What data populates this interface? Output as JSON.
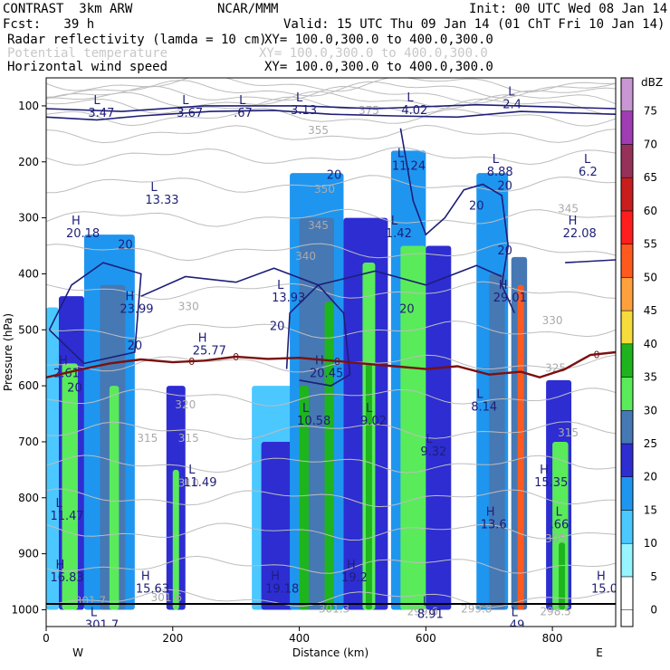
{
  "header": {
    "model": "CONTRAST  3km ARW",
    "org": "NCAR/MMM",
    "init": "Init: 00 UTC Wed 08 Jan 14",
    "fcst": "Fcst:   39 h",
    "valid": "Valid: 15 UTC Thu 09 Jan 14 (01 ChT Fri 10 Jan 14)",
    "fields": [
      {
        "name": "Radar reflectivity (lamda = 10 cm)",
        "xy": "XY= 100.0,300.0 to 400.0,300.0",
        "color": "#000000"
      },
      {
        "name": "Potential temperature",
        "xy": "XY= 100.0,300.0 to 400.0,300.0",
        "color": "#c8c8c8"
      },
      {
        "name": "Horizontal wind speed",
        "xy": "XY= 100.0,300.0 to 400.0,300.0",
        "color": "#000000"
      }
    ]
  },
  "chart_data": {
    "type": "cross-section",
    "xlabel": "Distance (km)",
    "ylabel": "Pressure (hPa)",
    "xlim": [
      0,
      900
    ],
    "ylim": [
      1030,
      50
    ],
    "xticks": [
      "0",
      "200",
      "400",
      "600",
      "800"
    ],
    "xtick_values": [
      0,
      200,
      400,
      600,
      800
    ],
    "yticks": [
      "100",
      "200",
      "300",
      "400",
      "500",
      "600",
      "700",
      "800",
      "900",
      "1000"
    ],
    "ytick_values": [
      100,
      200,
      300,
      400,
      500,
      600,
      700,
      800,
      900,
      1000
    ],
    "direction_labels": {
      "west": "W",
      "east": "E"
    },
    "colorbar": {
      "unit": "dBZ",
      "levels": [
        "0",
        "5",
        "10",
        "15",
        "20",
        "25",
        "30",
        "35",
        "40",
        "45",
        "50",
        "55",
        "60",
        "65",
        "70",
        "75"
      ],
      "colors": [
        "#ffffff",
        "#96f5ff",
        "#4bc8ff",
        "#1e96f0",
        "#2d2dd2",
        "#4678b4",
        "#5aeb5a",
        "#1eb41e",
        "#f5dc3c",
        "#ffa03c",
        "#ff5a1e",
        "#ff1e1e",
        "#c81e1e",
        "#96325a",
        "#a03cb4",
        "#c896d2"
      ]
    },
    "reflectivity_columns": [
      {
        "x0": 0,
        "x1": 20,
        "ptop": 460,
        "pbot": 1000,
        "dbz": 10
      },
      {
        "x0": 20,
        "x1": 60,
        "ptop": 440,
        "pbot": 1000,
        "dbz": 20
      },
      {
        "x0": 25,
        "x1": 50,
        "ptop": 560,
        "pbot": 1000,
        "dbz": 30
      },
      {
        "x0": 60,
        "x1": 140,
        "ptop": 330,
        "pbot": 1000,
        "dbz": 15
      },
      {
        "x0": 85,
        "x1": 125,
        "ptop": 420,
        "pbot": 1000,
        "dbz": 25
      },
      {
        "x0": 100,
        "x1": 115,
        "ptop": 600,
        "pbot": 1000,
        "dbz": 30
      },
      {
        "x0": 190,
        "x1": 220,
        "ptop": 600,
        "pbot": 1000,
        "dbz": 20
      },
      {
        "x0": 200,
        "x1": 210,
        "ptop": 750,
        "pbot": 1000,
        "dbz": 30
      },
      {
        "x0": 325,
        "x1": 390,
        "ptop": 600,
        "pbot": 1000,
        "dbz": 10
      },
      {
        "x0": 340,
        "x1": 395,
        "ptop": 700,
        "pbot": 1000,
        "dbz": 20
      },
      {
        "x0": 385,
        "x1": 470,
        "ptop": 220,
        "pbot": 1000,
        "dbz": 15
      },
      {
        "x0": 400,
        "x1": 455,
        "ptop": 300,
        "pbot": 1000,
        "dbz": 25
      },
      {
        "x0": 400,
        "x1": 415,
        "ptop": 600,
        "pbot": 1000,
        "dbz": 35
      },
      {
        "x0": 440,
        "x1": 455,
        "ptop": 450,
        "pbot": 1000,
        "dbz": 35
      },
      {
        "x0": 470,
        "x1": 540,
        "ptop": 300,
        "pbot": 1000,
        "dbz": 20
      },
      {
        "x0": 500,
        "x1": 520,
        "ptop": 380,
        "pbot": 1000,
        "dbz": 30
      },
      {
        "x0": 505,
        "x1": 515,
        "ptop": 560,
        "pbot": 1000,
        "dbz": 35
      },
      {
        "x0": 545,
        "x1": 600,
        "ptop": 180,
        "pbot": 1000,
        "dbz": 15
      },
      {
        "x0": 560,
        "x1": 600,
        "ptop": 350,
        "pbot": 1000,
        "dbz": 30
      },
      {
        "x0": 600,
        "x1": 640,
        "ptop": 350,
        "pbot": 1000,
        "dbz": 20
      },
      {
        "x0": 680,
        "x1": 730,
        "ptop": 220,
        "pbot": 1000,
        "dbz": 15
      },
      {
        "x0": 700,
        "x1": 725,
        "ptop": 400,
        "pbot": 1000,
        "dbz": 25
      },
      {
        "x0": 735,
        "x1": 760,
        "ptop": 370,
        "pbot": 1000,
        "dbz": 25
      },
      {
        "x0": 745,
        "x1": 755,
        "ptop": 420,
        "pbot": 1000,
        "dbz": 50
      },
      {
        "x0": 790,
        "x1": 830,
        "ptop": 590,
        "pbot": 1000,
        "dbz": 20
      },
      {
        "x0": 800,
        "x1": 825,
        "ptop": 700,
        "pbot": 1000,
        "dbz": 30
      },
      {
        "x0": 810,
        "x1": 820,
        "ptop": 880,
        "pbot": 1000,
        "dbz": 35
      }
    ],
    "freezing_level": {
      "label": "0",
      "points": [
        [
          0,
          585
        ],
        [
          50,
          572
        ],
        [
          100,
          560
        ],
        [
          150,
          553
        ],
        [
          200,
          558
        ],
        [
          250,
          555
        ],
        [
          300,
          548
        ],
        [
          350,
          552
        ],
        [
          400,
          550
        ],
        [
          450,
          555
        ],
        [
          500,
          560
        ],
        [
          550,
          565
        ],
        [
          600,
          570
        ],
        [
          650,
          565
        ],
        [
          700,
          580
        ],
        [
          750,
          575
        ],
        [
          780,
          585
        ],
        [
          820,
          570
        ],
        [
          860,
          545
        ],
        [
          900,
          540
        ]
      ]
    },
    "theta_labels": [
      "375",
      "355",
      "350",
      "345",
      "340",
      "330",
      "325",
      "320",
      "315",
      "315",
      "310",
      "305",
      "301.7",
      "301.6",
      "301.3",
      "299.6",
      "299.8",
      "298.5",
      "330",
      "345",
      "315"
    ],
    "theta_label_positions": [
      [
        510,
        115
      ],
      [
        430,
        150
      ],
      [
        440,
        255
      ],
      [
        430,
        320
      ],
      [
        410,
        375
      ],
      [
        225,
        465
      ],
      [
        805,
        575
      ],
      [
        220,
        640
      ],
      [
        160,
        700
      ],
      [
        225,
        700
      ],
      [
        225,
        780
      ],
      [
        805,
        880
      ],
      [
        70,
        990
      ],
      [
        190,
        985
      ],
      [
        455,
        1005
      ],
      [
        595,
        1010
      ],
      [
        680,
        1005
      ],
      [
        805,
        1010
      ],
      [
        800,
        490
      ],
      [
        825,
        290
      ],
      [
        825,
        690
      ]
    ],
    "wind_extrema": [
      {
        "type": "L",
        "value": "3.47",
        "x": 75,
        "p": 100
      },
      {
        "type": "L",
        "value": "3.67",
        "x": 215,
        "p": 100
      },
      {
        "type": "L",
        "value": ".67",
        "x": 305,
        "p": 100
      },
      {
        "type": "L",
        "value": "3.13",
        "x": 395,
        "p": 95
      },
      {
        "type": "L",
        "value": "4.02",
        "x": 570,
        "p": 95
      },
      {
        "type": "L",
        "value": "2.4",
        "x": 730,
        "p": 85
      },
      {
        "type": "L",
        "value": "11.24",
        "x": 555,
        "p": 195
      },
      {
        "type": "L",
        "value": "8.88",
        "x": 705,
        "p": 205
      },
      {
        "type": "L",
        "value": "6.2",
        "x": 850,
        "p": 205
      },
      {
        "type": "L",
        "value": "13.33",
        "x": 165,
        "p": 255
      },
      {
        "type": "H",
        "value": "20.18",
        "x": 40,
        "p": 315
      },
      {
        "type": "L",
        "value": "1.42",
        "x": 545,
        "p": 315
      },
      {
        "type": "H",
        "value": "22.08",
        "x": 825,
        "p": 315
      },
      {
        "type": "H",
        "value": "23.99",
        "x": 125,
        "p": 450
      },
      {
        "type": "L",
        "value": "13.93",
        "x": 365,
        "p": 430
      },
      {
        "type": "H",
        "value": "29.01",
        "x": 715,
        "p": 430
      },
      {
        "type": "H",
        "value": "25.77",
        "x": 240,
        "p": 525
      },
      {
        "type": "H",
        "value": "2.61",
        "x": 20,
        "p": 565
      },
      {
        "type": "H",
        "value": "20.45",
        "x": 425,
        "p": 565
      },
      {
        "type": "L",
        "value": "10.58",
        "x": 405,
        "p": 650
      },
      {
        "type": "L",
        "value": "9.02",
        "x": 505,
        "p": 650
      },
      {
        "type": "L",
        "value": "8.14",
        "x": 680,
        "p": 625
      },
      {
        "type": "L",
        "value": "9.32",
        "x": 600,
        "p": 705
      },
      {
        "type": "L",
        "value": "11.49",
        "x": 225,
        "p": 760
      },
      {
        "type": "H",
        "value": "15.35",
        "x": 780,
        "p": 760
      },
      {
        "type": "L",
        "value": "11.47",
        "x": 15,
        "p": 820
      },
      {
        "type": "H",
        "value": "13.6",
        "x": 695,
        "p": 835
      },
      {
        "type": "L",
        "value": ".66",
        "x": 805,
        "p": 835
      },
      {
        "type": "H",
        "value": "16.83",
        "x": 15,
        "p": 930
      },
      {
        "type": "H",
        "value": "15.63",
        "x": 150,
        "p": 950
      },
      {
        "type": "H",
        "value": "19.18",
        "x": 355,
        "p": 950
      },
      {
        "type": "H",
        "value": "19.2",
        "x": 475,
        "p": 930
      },
      {
        "type": "H",
        "value": "15.0",
        "x": 870,
        "p": 950
      },
      {
        "type": "L",
        "value": "8.91",
        "x": 595,
        "p": 995
      },
      {
        "type": "L",
        "value": ".49",
        "x": 735,
        "p": 1015
      },
      {
        "type": "L",
        "value": "301.7",
        "x": 70,
        "p": 1015
      }
    ],
    "wind_contour_labels": [
      "20",
      "20",
      "20",
      "20",
      "20",
      "20",
      "20",
      "20",
      "20"
    ],
    "wind_contour_label_positions": [
      [
        45,
        610
      ],
      [
        125,
        355
      ],
      [
        140,
        535
      ],
      [
        365,
        500
      ],
      [
        455,
        230
      ],
      [
        570,
        470
      ],
      [
        680,
        285
      ],
      [
        725,
        365
      ],
      [
        725,
        250
      ]
    ]
  }
}
